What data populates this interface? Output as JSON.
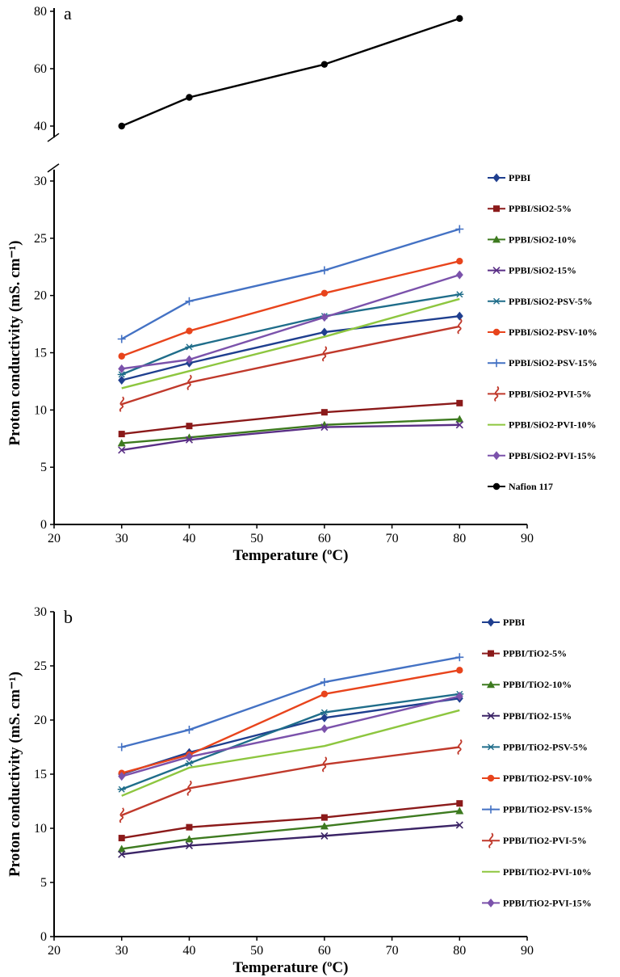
{
  "chart_data": [
    {
      "type": "line",
      "panel_label": "a",
      "xlabel": "Temperature (ºC)",
      "ylabel": "Proton conductivity (mS. cm⁻¹)",
      "xlim": [
        20,
        90
      ],
      "xticks": [
        20,
        30,
        40,
        50,
        60,
        70,
        80,
        90
      ],
      "ylim": [
        0,
        80
      ],
      "yticks": [
        0,
        5,
        10,
        15,
        20,
        25,
        30,
        40,
        60,
        80
      ],
      "axis_break": [
        31,
        36
      ],
      "grid": false,
      "legend_position": "right",
      "series": [
        {
          "name": "PPBI",
          "color": "#1f3f8f",
          "marker": "diamond",
          "x": [
            30,
            40,
            60,
            80
          ],
          "y": [
            12.6,
            14.1,
            16.8,
            18.2
          ]
        },
        {
          "name": "PPBI/SiO2-5%",
          "color": "#8b1a1a",
          "marker": "square",
          "x": [
            30,
            40,
            60,
            80
          ],
          "y": [
            7.9,
            8.6,
            9.8,
            10.6
          ]
        },
        {
          "name": "PPBI/SiO2-10%",
          "color": "#3d7a1f",
          "marker": "triangle",
          "x": [
            30,
            40,
            60,
            80
          ],
          "y": [
            7.1,
            7.6,
            8.7,
            9.2
          ]
        },
        {
          "name": "PPBI/SiO2-15%",
          "color": "#5a2f86",
          "marker": "x",
          "x": [
            30,
            40,
            60,
            80
          ],
          "y": [
            6.5,
            7.4,
            8.5,
            8.7
          ]
        },
        {
          "name": "PPBI/SiO2-PSV-5%",
          "color": "#1f6d8a",
          "marker": "asterisk",
          "x": [
            30,
            40,
            60,
            80
          ],
          "y": [
            13.1,
            15.5,
            18.2,
            20.1
          ]
        },
        {
          "name": "PPBI/SiO2-PSV-10%",
          "color": "#e8441c",
          "marker": "circle",
          "x": [
            30,
            40,
            60,
            80
          ],
          "y": [
            14.7,
            16.9,
            20.2,
            23.0
          ]
        },
        {
          "name": "PPBI/SiO2-PSV-15%",
          "color": "#4472c4",
          "marker": "plus",
          "x": [
            30,
            40,
            60,
            80
          ],
          "y": [
            16.2,
            19.5,
            22.2,
            25.8
          ]
        },
        {
          "name": "PPBI/SiO2-PVI-5%",
          "color": "#c0392b",
          "marker": "squiggle",
          "x": [
            30,
            40,
            60,
            80
          ],
          "y": [
            10.5,
            12.4,
            14.9,
            17.3
          ]
        },
        {
          "name": "PPBI/SiO2-PVI-10%",
          "color": "#8dc63f",
          "marker": "dash",
          "x": [
            30,
            40,
            60,
            80
          ],
          "y": [
            11.9,
            13.4,
            16.4,
            19.7
          ]
        },
        {
          "name": "PPBI/SiO2-PVI-15%",
          "color": "#7b52ab",
          "marker": "diamond",
          "x": [
            30,
            40,
            60,
            80
          ],
          "y": [
            13.6,
            14.4,
            18.1,
            21.8
          ]
        },
        {
          "name": "Nafion 117",
          "color": "#000000",
          "marker": "circle",
          "x": [
            30,
            40,
            60,
            80
          ],
          "y": [
            40,
            50,
            61.5,
            77.5
          ]
        }
      ]
    },
    {
      "type": "line",
      "panel_label": "b",
      "xlabel": "Temperature (ºC)",
      "ylabel": "Proton conductivity (mS. cm⁻¹)",
      "xlim": [
        20,
        90
      ],
      "xticks": [
        20,
        30,
        40,
        50,
        60,
        70,
        80,
        90
      ],
      "ylim": [
        0,
        30
      ],
      "yticks": [
        0,
        5,
        10,
        15,
        20,
        25,
        30
      ],
      "grid": false,
      "legend_position": "right",
      "series": [
        {
          "name": "PPBI",
          "color": "#1f3f8f",
          "marker": "diamond",
          "x": [
            30,
            40,
            60,
            80
          ],
          "y": [
            15.0,
            17.0,
            20.2,
            22.0
          ]
        },
        {
          "name": "PPBI/TiO2-5%",
          "color": "#8b1a1a",
          "marker": "square",
          "x": [
            30,
            40,
            60,
            80
          ],
          "y": [
            9.1,
            10.1,
            11.0,
            12.3
          ]
        },
        {
          "name": "PPBI/TiO2-10%",
          "color": "#3d7a1f",
          "marker": "triangle",
          "x": [
            30,
            40,
            60,
            80
          ],
          "y": [
            8.1,
            9.0,
            10.2,
            11.6
          ]
        },
        {
          "name": "PPBI/TiO2-15%",
          "color": "#3b2466",
          "marker": "x",
          "x": [
            30,
            40,
            60,
            80
          ],
          "y": [
            7.6,
            8.4,
            9.3,
            10.3
          ]
        },
        {
          "name": "PPBI/TiO2-PSV-5%",
          "color": "#1f6d8a",
          "marker": "asterisk",
          "x": [
            30,
            40,
            60,
            80
          ],
          "y": [
            13.6,
            16.0,
            20.7,
            22.4
          ]
        },
        {
          "name": "PPBI/TiO2-PSV-10%",
          "color": "#e8441c",
          "marker": "circle",
          "x": [
            30,
            40,
            60,
            80
          ],
          "y": [
            15.1,
            16.8,
            22.4,
            24.6
          ]
        },
        {
          "name": "PPBI/TiO2-PSV-15%",
          "color": "#4472c4",
          "marker": "plus",
          "x": [
            30,
            40,
            60,
            80
          ],
          "y": [
            17.5,
            19.1,
            23.5,
            25.8
          ]
        },
        {
          "name": "PPBI/TiO2-PVI-5%",
          "color": "#c0392b",
          "marker": "squiggle",
          "x": [
            30,
            40,
            60,
            80
          ],
          "y": [
            11.2,
            13.7,
            15.9,
            17.5
          ]
        },
        {
          "name": "PPBI/TiO2-PVI-10%",
          "color": "#8dc63f",
          "marker": "dash",
          "x": [
            30,
            40,
            60,
            80
          ],
          "y": [
            13.0,
            15.6,
            17.6,
            20.9
          ]
        },
        {
          "name": "PPBI/TiO2-PVI-15%",
          "color": "#7b52ab",
          "marker": "diamond",
          "x": [
            30,
            40,
            60,
            80
          ],
          "y": [
            14.8,
            16.6,
            19.2,
            22.2
          ]
        }
      ]
    }
  ]
}
